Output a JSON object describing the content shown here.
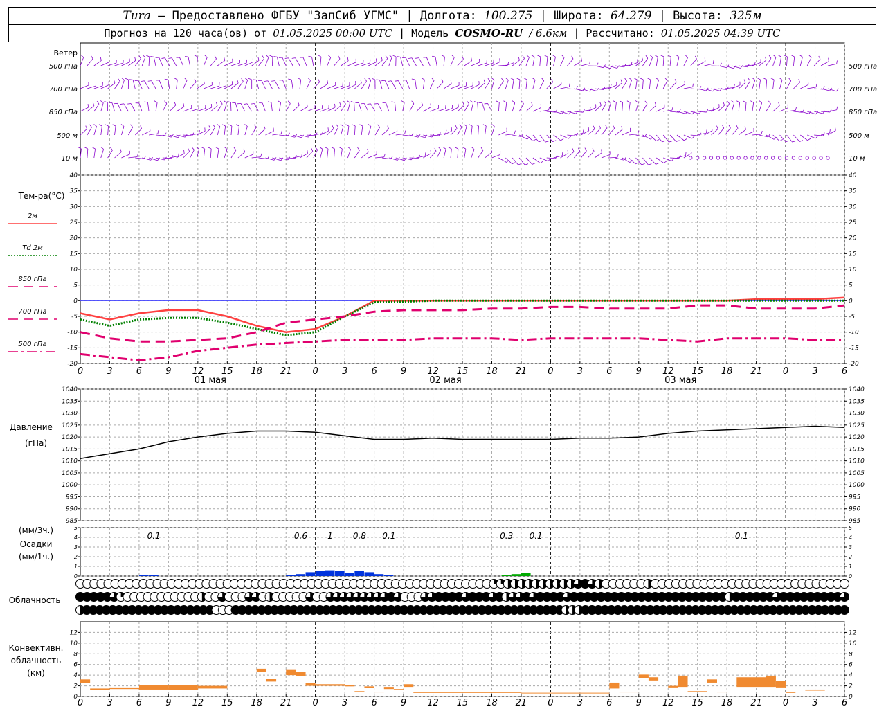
{
  "header": {
    "station": "Tura",
    "dash": " – ",
    "provider": "Предоставлено ФГБУ \"ЗапСиб УГМС\"",
    "lon_label": "Долгота:",
    "lon_value": "100.275",
    "lat_label": "Широта:",
    "lat_value": "64.279",
    "alt_label": "Высота:",
    "alt_value": "325м",
    "sep": " | "
  },
  "subheader": {
    "forecast_prefix": "Прогноз на 120 часа(ов) от",
    "forecast_start": "01.05.2025 00:00 UTC",
    "model_label": "Модель",
    "model_name": "COSMO-RU",
    "model_res": "/ 6.6км",
    "calc_label": "Рассчитано:",
    "calc_time": "01.05.2025 04:39 UTC"
  },
  "colors": {
    "t2m": "#ff4040",
    "td2m": "#008000",
    "t850": "#e0006e",
    "t700": "#e0006e",
    "t500": "#e0006e",
    "wind": "#8800cc",
    "pressure": "#000000",
    "precip": "#0033dd",
    "precip2": "#00aa00",
    "convective": "#f08a30",
    "grid": "#aaaaaa",
    "zero_line": "#4040ff"
  },
  "x_axis": {
    "hour_ticks": [
      "0",
      "3",
      "6",
      "9",
      "12",
      "15",
      "18",
      "21",
      "0",
      "3",
      "6",
      "9",
      "12",
      "15",
      "18",
      "21",
      "0",
      "3",
      "6",
      "9",
      "12",
      "15",
      "18",
      "21",
      "0",
      "3",
      "6"
    ],
    "day_labels": [
      "01 мая",
      "02 мая",
      "03 мая"
    ]
  },
  "wind_panel": {
    "title": "Ветер",
    "levels": [
      "500 гПа",
      "700 гПа",
      "850 гПа",
      "500 м",
      "10 м"
    ]
  },
  "chart_data": [
    {
      "type": "line",
      "panel": "temperature",
      "ylabel": "Тем-ра(°C)",
      "ylim": [
        -20,
        40
      ],
      "yticks": [
        -20,
        -15,
        -10,
        -5,
        0,
        5,
        10,
        15,
        20,
        25,
        30,
        35,
        40
      ],
      "x_hours": [
        0,
        3,
        6,
        9,
        12,
        15,
        18,
        21,
        24,
        27,
        30,
        33,
        36,
        39,
        42,
        45,
        48,
        51,
        54,
        57,
        60,
        63,
        66,
        69,
        72,
        75,
        78
      ],
      "series": [
        {
          "name": "2м",
          "values": [
            -4,
            -6,
            -4,
            -3,
            -3,
            -5,
            -8,
            -10,
            -9,
            -5,
            0,
            0,
            0,
            0,
            0,
            0,
            0,
            0,
            0,
            0,
            0,
            0,
            0,
            0.5,
            0.5,
            0.5,
            1
          ]
        },
        {
          "name": "Td 2м",
          "values": [
            -6,
            -8,
            -6,
            -5.5,
            -5.5,
            -7,
            -9,
            -11,
            -10,
            -5,
            -0.5,
            -0.3,
            0,
            0,
            0,
            0,
            0,
            0,
            0,
            0,
            0,
            0,
            0,
            0,
            0,
            0,
            0
          ]
        },
        {
          "name": "850 гПа",
          "values": [
            -10,
            -12,
            -13,
            -13,
            -12.5,
            -12,
            -10,
            -7,
            -6,
            -5,
            -3.5,
            -3,
            -3,
            -3,
            -2.5,
            -2.5,
            -2,
            -2,
            -2.5,
            -2.5,
            -2.5,
            -1.5,
            -1.5,
            -2.5,
            -2.5,
            -2.5,
            -1.5
          ]
        },
        {
          "name": "700 гПа",
          "values": [
            -10,
            -12,
            -13,
            -13,
            -12.5,
            -12,
            -10,
            -7,
            -6,
            -5,
            -3.5,
            -3,
            -3,
            -3,
            -2.5,
            -2.5,
            -2,
            -2,
            -2.5,
            -2.5,
            -2.5,
            -1.5,
            -1.5,
            -2.5,
            -2.5,
            -2.5,
            -1.5
          ]
        },
        {
          "name": "500 гПа",
          "values": [
            -17,
            -18,
            -19,
            -18,
            -16,
            -15,
            -14,
            -13.5,
            -13,
            -12.5,
            -12.5,
            -12.5,
            -12,
            -12,
            -12,
            -12.5,
            -12,
            -12,
            -12,
            -12,
            -12.5,
            -13,
            -12,
            -12,
            -12,
            -12.5,
            -12.5
          ]
        }
      ]
    },
    {
      "type": "line",
      "panel": "pressure",
      "ylabel": "Давление",
      "yunit": "(гПа)",
      "ylim": [
        985,
        1040
      ],
      "yticks": [
        985,
        990,
        995,
        1000,
        1005,
        1010,
        1015,
        1020,
        1025,
        1030,
        1035,
        1040
      ],
      "x_hours": [
        0,
        3,
        6,
        9,
        12,
        15,
        18,
        21,
        24,
        27,
        30,
        33,
        36,
        39,
        42,
        45,
        48,
        51,
        54,
        57,
        60,
        63,
        66,
        69,
        72,
        75,
        78
      ],
      "series": [
        {
          "values": [
            1011,
            1013,
            1015,
            1018,
            1020,
            1021.5,
            1022.5,
            1022.5,
            1022,
            1020.5,
            1019,
            1019,
            1019.5,
            1019,
            1019,
            1019,
            1019,
            1019.5,
            1019.5,
            1020,
            1021.5,
            1022.5,
            1023,
            1023.5,
            1024,
            1024.5,
            1024
          ]
        }
      ]
    },
    {
      "type": "bar",
      "panel": "precipitation",
      "ylabel_top": "(мм/3ч.)",
      "ylabel_mid": "Осадки",
      "ylabel_bot": "(мм/1ч.)",
      "ylim": [
        0,
        5
      ],
      "yticks": [
        0,
        1,
        2,
        3,
        4,
        5
      ],
      "hourly_mm": [
        {
          "h": 6,
          "v": 0.1
        },
        {
          "h": 7,
          "v": 0.1
        },
        {
          "h": 21,
          "v": 0.1
        },
        {
          "h": 22,
          "v": 0.2
        },
        {
          "h": 23,
          "v": 0.4
        },
        {
          "h": 24,
          "v": 0.5
        },
        {
          "h": 25,
          "v": 0.6
        },
        {
          "h": 26,
          "v": 0.5
        },
        {
          "h": 27,
          "v": 0.3
        },
        {
          "h": 28,
          "v": 0.5
        },
        {
          "h": 29,
          "v": 0.4
        },
        {
          "h": 30,
          "v": 0.2
        },
        {
          "h": 31,
          "v": 0.1
        },
        {
          "h": 43,
          "v": 0.1
        },
        {
          "h": 44,
          "v": 0.2
        },
        {
          "h": 45,
          "v": 0.3
        }
      ],
      "sums_3h": [
        {
          "h": 7.5,
          "label": "0.1"
        },
        {
          "h": 22.5,
          "label": "0.6"
        },
        {
          "h": 25.5,
          "label": "1"
        },
        {
          "h": 28.5,
          "label": "0.8"
        },
        {
          "h": 31.5,
          "label": "0.1"
        },
        {
          "h": 43.5,
          "label": "0.3"
        },
        {
          "h": 46.5,
          "label": "0.1"
        },
        {
          "h": 67.5,
          "label": "0.1"
        }
      ]
    },
    {
      "type": "table",
      "panel": "cloudiness",
      "ylabel": "Облачность",
      "rows_oktas": [
        [
          0,
          0,
          0,
          0,
          0,
          0,
          0,
          0,
          0,
          0,
          0,
          0,
          0,
          0,
          0,
          0,
          0,
          0,
          0,
          0,
          0,
          0,
          0,
          0,
          0,
          0,
          0,
          0,
          0,
          0,
          0,
          0,
          0,
          0,
          0,
          0,
          0,
          0,
          0,
          0,
          0,
          0,
          0,
          0,
          0,
          0,
          0,
          0,
          0,
          0,
          0,
          0,
          0,
          0,
          0,
          0,
          0,
          0,
          0,
          2,
          2,
          4,
          4,
          4,
          4,
          4,
          4,
          4,
          4,
          4,
          4,
          6,
          8,
          6,
          4,
          0,
          0,
          0,
          0,
          0,
          0,
          4,
          0,
          0,
          0,
          0,
          0,
          0,
          0,
          0,
          0,
          0,
          0,
          0,
          0,
          0,
          0,
          0,
          0,
          0,
          0,
          0,
          0,
          0,
          0,
          0,
          0,
          0,
          0,
          0
        ],
        [
          8,
          8,
          8,
          8,
          8,
          6,
          2,
          0,
          0,
          0,
          0,
          0,
          0,
          0,
          0,
          0,
          0,
          0,
          4,
          0,
          0,
          6,
          0,
          0,
          0,
          6,
          6,
          0,
          4,
          0,
          0,
          0,
          0,
          0,
          6,
          0,
          0,
          6,
          6,
          6,
          6,
          6,
          6,
          6,
          6,
          6,
          8,
          6,
          0,
          0,
          0,
          6,
          6,
          8,
          8,
          8,
          8,
          6,
          8,
          8,
          8,
          6,
          8,
          4,
          6,
          6,
          8,
          6,
          8,
          8,
          8,
          8,
          6,
          8,
          8,
          8,
          8,
          8,
          8,
          8,
          8,
          8,
          8,
          8,
          8,
          8,
          8,
          8,
          8,
          8,
          8,
          8,
          8,
          8,
          8,
          8,
          4,
          8,
          8,
          8,
          8,
          8,
          8,
          6,
          8,
          8,
          8,
          8,
          8,
          8,
          8,
          8,
          8,
          6
        ],
        [
          4,
          8,
          8,
          8,
          8,
          8,
          8,
          8,
          8,
          8,
          8,
          8,
          8,
          8,
          8,
          8,
          8,
          8,
          8,
          8,
          8,
          0,
          0,
          0,
          8,
          8,
          8,
          8,
          8,
          8,
          8,
          8,
          8,
          8,
          8,
          8,
          8,
          8,
          8,
          8,
          8,
          8,
          8,
          8,
          8,
          8,
          8,
          8,
          8,
          8,
          8,
          8,
          8,
          8,
          8,
          8,
          8,
          8,
          8,
          8,
          8,
          8,
          8,
          8,
          8,
          8,
          8,
          8,
          8,
          8,
          8,
          8,
          8,
          8,
          8,
          4,
          4,
          4,
          8,
          8,
          8,
          8,
          8,
          8,
          8,
          8,
          8,
          8,
          8,
          8,
          8,
          8,
          8,
          8,
          8,
          8,
          8,
          8,
          8,
          8,
          8,
          8,
          8,
          8,
          8,
          8,
          8,
          8,
          8,
          8,
          8,
          8,
          8,
          8,
          8,
          8,
          8,
          8,
          8
        ]
      ]
    },
    {
      "type": "bar",
      "panel": "convective",
      "ylabel": [
        "Конвективн.",
        "облачность",
        "(км)"
      ],
      "ylim": [
        0,
        14
      ],
      "yticks": [
        0,
        2,
        4,
        6,
        8,
        10,
        12
      ],
      "layers_km": [
        {
          "h0": 0,
          "h1": 1,
          "b": 2.5,
          "t": 3.2
        },
        {
          "h0": 1,
          "h1": 3,
          "b": 1.2,
          "t": 1.5
        },
        {
          "h0": 3,
          "h1": 6,
          "b": 1.4,
          "t": 1.7
        },
        {
          "h0": 6,
          "h1": 9,
          "b": 1.3,
          "t": 2.1
        },
        {
          "h0": 9,
          "h1": 12,
          "b": 1.2,
          "t": 2.2
        },
        {
          "h0": 12,
          "h1": 15,
          "b": 1.5,
          "t": 2.0
        },
        {
          "h0": 18,
          "h1": 19,
          "b": 4.6,
          "t": 5.2
        },
        {
          "h0": 19,
          "h1": 20,
          "b": 2.8,
          "t": 3.3
        },
        {
          "h0": 21,
          "h1": 22,
          "b": 4.0,
          "t": 5.1
        },
        {
          "h0": 22,
          "h1": 23,
          "b": 3.8,
          "t": 4.6
        },
        {
          "h0": 23,
          "h1": 24,
          "b": 2.0,
          "t": 2.5
        },
        {
          "h0": 24,
          "h1": 27,
          "b": 2.0,
          "t": 2.3
        },
        {
          "h0": 27,
          "h1": 28,
          "b": 1.9,
          "t": 2.2
        },
        {
          "h0": 28,
          "h1": 29,
          "b": 0.8,
          "t": 1.0
        },
        {
          "h0": 29,
          "h1": 30,
          "b": 1.6,
          "t": 1.9
        },
        {
          "h0": 30,
          "h1": 31,
          "b": 0.8,
          "t": 0.9
        },
        {
          "h0": 31,
          "h1": 32,
          "b": 1.4,
          "t": 1.8
        },
        {
          "h0": 32,
          "h1": 33,
          "b": 1.2,
          "t": 1.4
        },
        {
          "h0": 33,
          "h1": 34,
          "b": 1.8,
          "t": 2.3
        },
        {
          "h0": 34,
          "h1": 45,
          "b": 0.7,
          "t": 0.8
        },
        {
          "h0": 45,
          "h1": 54,
          "b": 0.6,
          "t": 0.7
        },
        {
          "h0": 54,
          "h1": 55,
          "b": 1.5,
          "t": 2.6
        },
        {
          "h0": 55,
          "h1": 57,
          "b": 0.8,
          "t": 0.9
        },
        {
          "h0": 57,
          "h1": 58,
          "b": 3.5,
          "t": 4.1
        },
        {
          "h0": 58,
          "h1": 59,
          "b": 3.0,
          "t": 3.6
        },
        {
          "h0": 60,
          "h1": 61,
          "b": 1.7,
          "t": 2.0
        },
        {
          "h0": 61,
          "h1": 62,
          "b": 1.8,
          "t": 3.9
        },
        {
          "h0": 62,
          "h1": 64,
          "b": 0.8,
          "t": 1.0
        },
        {
          "h0": 64,
          "h1": 65,
          "b": 2.6,
          "t": 3.2
        },
        {
          "h0": 65,
          "h1": 66,
          "b": 0.8,
          "t": 0.9
        },
        {
          "h0": 67,
          "h1": 70,
          "b": 1.8,
          "t": 3.6
        },
        {
          "h0": 70,
          "h1": 71,
          "b": 1.8,
          "t": 3.9
        },
        {
          "h0": 71,
          "h1": 72,
          "b": 1.7,
          "t": 2.9
        },
        {
          "h0": 72,
          "h1": 73,
          "b": 0.7,
          "t": 0.8
        },
        {
          "h0": 74,
          "h1": 76,
          "b": 1.1,
          "t": 1.3
        }
      ]
    }
  ]
}
